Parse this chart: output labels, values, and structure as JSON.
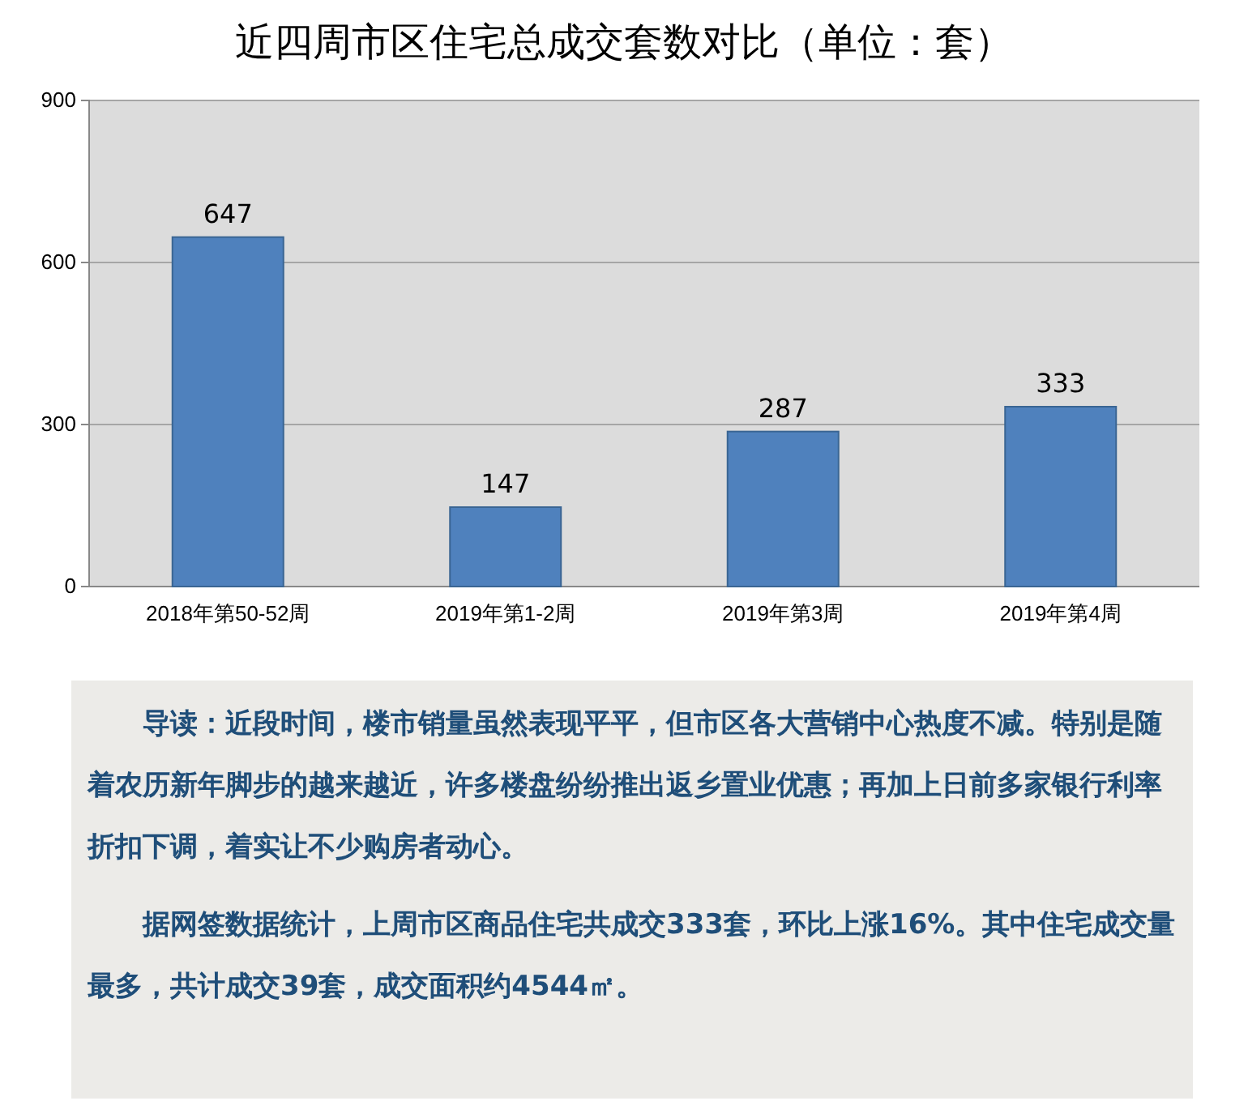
{
  "chart_data": {
    "type": "bar",
    "title": "近四周市区住宅总成交套数对比（单位：套）",
    "categories": [
      "2018年第50-52周",
      "2019年第1-2周",
      "2019年第3周",
      "2019年第4周"
    ],
    "values": [
      647,
      147,
      287,
      333
    ],
    "color": "#4f81bd",
    "ylim": [
      0,
      900
    ],
    "yticks": [
      0,
      300,
      600,
      900
    ],
    "grid": "y",
    "data_labels": true,
    "annotations": [
      "导读：近段时间，楼市销量虽然表现平平，但市区各大营销中心热度不减。特别是随着农历新年脚步的越来越近，许多楼盘纷纷推出返乡置业优惠；再加上日前多家银行利率折扣下调，着实让不少购房者动心。",
      "据网签数据统计，上周市区商品住宅共成交333套，环比上涨16%。其中住宅成交量最多，共计成交39套，成交面积约4544㎡。"
    ]
  }
}
